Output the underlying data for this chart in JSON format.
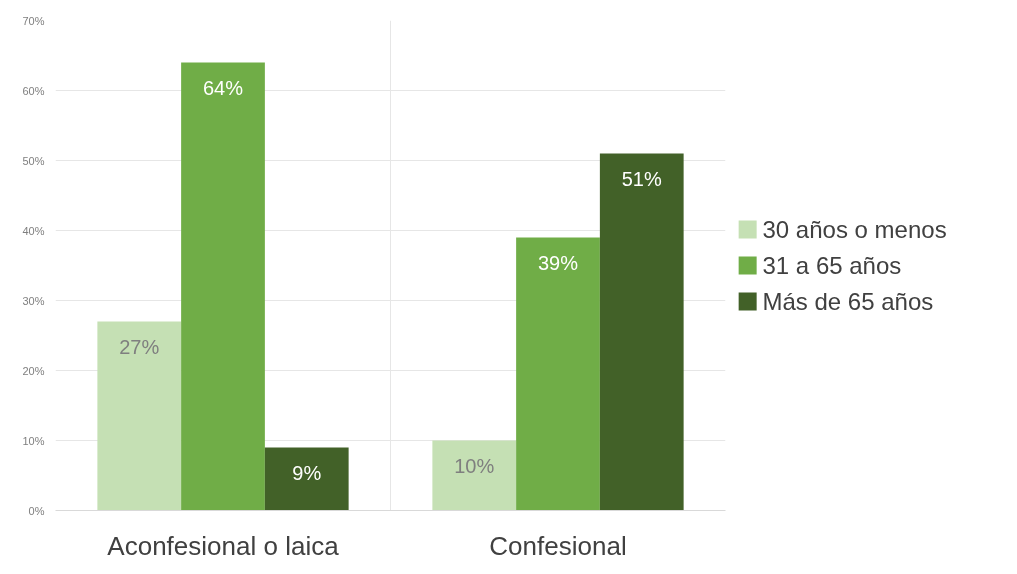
{
  "chart_data": {
    "type": "bar",
    "categories": [
      "Aconfesional o laica",
      "Confesional"
    ],
    "series": [
      {
        "name": "30 años o menos",
        "color": "#c5e0b4",
        "values": [
          27,
          10
        ]
      },
      {
        "name": "31 a 65 años",
        "color": "#70ad47",
        "values": [
          64,
          39
        ]
      },
      {
        "name": "Más de 65 años",
        "color": "#426128",
        "values": [
          9,
          51
        ]
      }
    ],
    "ylim": [
      0,
      70
    ],
    "yticks": [
      {
        "value": 0,
        "label": "0%"
      },
      {
        "value": 10,
        "label": "10%"
      },
      {
        "value": 20,
        "label": "20%"
      },
      {
        "value": 30,
        "label": "30%"
      },
      {
        "value": 40,
        "label": "40%"
      },
      {
        "value": 50,
        "label": "50%"
      },
      {
        "value": 60,
        "label": "60%"
      },
      {
        "value": 70,
        "label": "70%"
      }
    ],
    "value_labels": [
      [
        "27%",
        "10%"
      ],
      [
        "64%",
        "39%"
      ],
      [
        "9%",
        "51%"
      ]
    ],
    "grid": true,
    "legend": "right"
  }
}
